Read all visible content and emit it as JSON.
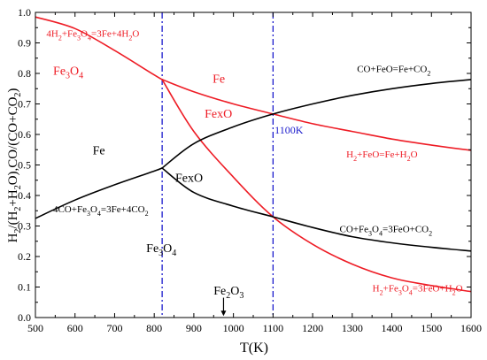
{
  "chart_data": {
    "type": "line",
    "xlabel": "T(K)",
    "ylabel": "H2/(H2+H2O),CO/(CO+CO2)",
    "xlim": [
      500,
      1600
    ],
    "ylim": [
      0,
      1.0
    ],
    "x_ticks": [
      500,
      600,
      700,
      800,
      900,
      1000,
      1100,
      1200,
      1300,
      1400,
      1500,
      1600
    ],
    "y_ticks": [
      0.0,
      0.1,
      0.2,
      0.3,
      0.4,
      0.5,
      0.6,
      0.7,
      0.8,
      0.9,
      1.0
    ],
    "grid": false,
    "colors": {
      "red": "#ee1c25",
      "black": "#000000",
      "blue": "#1a1acc"
    },
    "series": [
      {
        "name": "4H2+Fe3O4=3Fe+4H2O",
        "color": "#ee1c25",
        "x": [
          500,
          600,
          700,
          800,
          820
        ],
        "y": [
          0.985,
          0.947,
          0.875,
          0.795,
          0.78
        ]
      },
      {
        "name": "H2+FeO=Fe+H2O",
        "color": "#ee1c25",
        "x": [
          820,
          900,
          1000,
          1100,
          1200,
          1300,
          1400,
          1500,
          1600
        ],
        "y": [
          0.78,
          0.74,
          0.7,
          0.667,
          0.635,
          0.61,
          0.585,
          0.565,
          0.548
        ]
      },
      {
        "name": "H2+Fe3O4=3FeO+H2O",
        "color": "#ee1c25",
        "x": [
          820,
          900,
          1000,
          1100,
          1200,
          1300,
          1400,
          1500,
          1600
        ],
        "y": [
          0.78,
          0.61,
          0.46,
          0.33,
          0.24,
          0.175,
          0.13,
          0.105,
          0.085
        ]
      },
      {
        "name": "CO+FeO=Fe+CO2",
        "color": "#000000",
        "x": [
          820,
          900,
          1000,
          1100,
          1200,
          1300,
          1400,
          1500,
          1600
        ],
        "y": [
          0.49,
          0.57,
          0.625,
          0.667,
          0.7,
          0.728,
          0.75,
          0.767,
          0.78
        ]
      },
      {
        "name": "4CO+Fe3O4=3Fe+4CO2",
        "color": "#000000",
        "x": [
          500,
          600,
          700,
          800,
          820
        ],
        "y": [
          0.325,
          0.385,
          0.435,
          0.48,
          0.49
        ]
      },
      {
        "name": "CO+Fe3O4=3FeO+CO2",
        "color": "#000000",
        "x": [
          820,
          900,
          1000,
          1100,
          1200,
          1300,
          1400,
          1500,
          1600
        ],
        "y": [
          0.49,
          0.41,
          0.365,
          0.33,
          0.295,
          0.265,
          0.245,
          0.23,
          0.218
        ]
      }
    ],
    "vlines": [
      {
        "x": 820,
        "color": "#1a1acc"
      },
      {
        "x": 1100,
        "color": "#1a1acc"
      }
    ],
    "annotations": [
      {
        "id": "ann-red-top",
        "segs": [
          [
            "4H",
            ""
          ],
          [
            "2",
            "sub"
          ],
          [
            "+Fe",
            ""
          ],
          [
            "3",
            "sub"
          ],
          [
            "O",
            ""
          ],
          [
            "4",
            "sub"
          ],
          [
            "=3Fe+4H",
            ""
          ],
          [
            "2",
            "sub"
          ],
          [
            "O",
            ""
          ]
        ],
        "x": 645,
        "y": 0.92,
        "size": 11,
        "color": "#ee1c25",
        "anchor": "middle"
      },
      {
        "id": "ann-fe3o4-red",
        "segs": [
          [
            "Fe",
            ""
          ],
          [
            "3",
            "sub"
          ],
          [
            "O",
            ""
          ],
          [
            "4",
            "sub"
          ]
        ],
        "x": 583,
        "y": 0.795,
        "size": 14,
        "color": "#ee1c25",
        "anchor": "middle"
      },
      {
        "id": "ann-fe-red",
        "segs": [
          [
            "Fe",
            ""
          ]
        ],
        "x": 963,
        "y": 0.77,
        "size": 14,
        "color": "#ee1c25",
        "anchor": "middle"
      },
      {
        "id": "ann-fexo-red",
        "segs": [
          [
            "FexO",
            ""
          ]
        ],
        "x": 962,
        "y": 0.655,
        "size": 14,
        "color": "#ee1c25",
        "anchor": "middle"
      },
      {
        "id": "ann-1100k",
        "segs": [
          [
            "1100K",
            ""
          ]
        ],
        "x": 1104,
        "y": 0.603,
        "size": 12,
        "color": "#1a1acc",
        "anchor": "start"
      },
      {
        "id": "ann-co-feo",
        "segs": [
          [
            "CO+FeO=Fe+CO",
            ""
          ],
          [
            "2",
            "sub"
          ]
        ],
        "x": 1405,
        "y": 0.805,
        "size": 11,
        "color": "#000000",
        "anchor": "middle"
      },
      {
        "id": "ann-h2-feo",
        "segs": [
          [
            "H",
            ""
          ],
          [
            "2",
            "sub"
          ],
          [
            "+FeO=Fe+H",
            ""
          ],
          [
            "2",
            "sub"
          ],
          [
            "O",
            ""
          ]
        ],
        "x": 1375,
        "y": 0.525,
        "size": 11,
        "color": "#ee1c25",
        "anchor": "middle"
      },
      {
        "id": "ann-fe-black",
        "segs": [
          [
            "Fe",
            ""
          ]
        ],
        "x": 660,
        "y": 0.535,
        "size": 14,
        "color": "#000000",
        "anchor": "middle"
      },
      {
        "id": "ann-fexo-black",
        "segs": [
          [
            "FexO",
            ""
          ]
        ],
        "x": 888,
        "y": 0.445,
        "size": 14,
        "color": "#000000",
        "anchor": "middle"
      },
      {
        "id": "ann-4co",
        "segs": [
          [
            "4CO+Fe",
            ""
          ],
          [
            "3",
            "sub"
          ],
          [
            "O",
            ""
          ],
          [
            "4",
            "sub"
          ],
          [
            "=3Fe+4CO",
            ""
          ],
          [
            "2",
            "sub"
          ]
        ],
        "x": 665,
        "y": 0.345,
        "size": 11,
        "color": "#000000",
        "anchor": "middle"
      },
      {
        "id": "ann-co-fe3o4",
        "segs": [
          [
            "CO+Fe",
            ""
          ],
          [
            "3",
            "sub"
          ],
          [
            "O",
            ""
          ],
          [
            "4",
            "sub"
          ],
          [
            "=3FeO+CO",
            ""
          ],
          [
            "2",
            "sub"
          ]
        ],
        "x": 1385,
        "y": 0.28,
        "size": 11,
        "color": "#000000",
        "anchor": "middle"
      },
      {
        "id": "ann-fe3o4-black",
        "segs": [
          [
            "Fe",
            ""
          ],
          [
            "3",
            "sub"
          ],
          [
            "O",
            ""
          ],
          [
            "4",
            "sub"
          ]
        ],
        "x": 818,
        "y": 0.215,
        "size": 14,
        "color": "#000000",
        "anchor": "middle"
      },
      {
        "id": "ann-fe2o3",
        "segs": [
          [
            "Fe",
            ""
          ],
          [
            "2",
            "sub"
          ],
          [
            "O",
            ""
          ],
          [
            "3",
            "sub"
          ]
        ],
        "x": 988,
        "y": 0.075,
        "size": 14,
        "color": "#000000",
        "anchor": "middle"
      },
      {
        "id": "ann-h2-fe3o4",
        "segs": [
          [
            "H",
            ""
          ],
          [
            "2",
            "sub"
          ],
          [
            "+Fe",
            ""
          ],
          [
            "3",
            "sub"
          ],
          [
            "O",
            ""
          ],
          [
            "4",
            "sub"
          ],
          [
            "=3FeO+H",
            ""
          ],
          [
            "2",
            "sub"
          ],
          [
            "O",
            ""
          ]
        ],
        "x": 1465,
        "y": 0.085,
        "size": 11,
        "color": "#ee1c25",
        "anchor": "middle"
      }
    ],
    "arrow": {
      "x": 975,
      "y_from": 0.065,
      "y_to": 0.005
    }
  }
}
